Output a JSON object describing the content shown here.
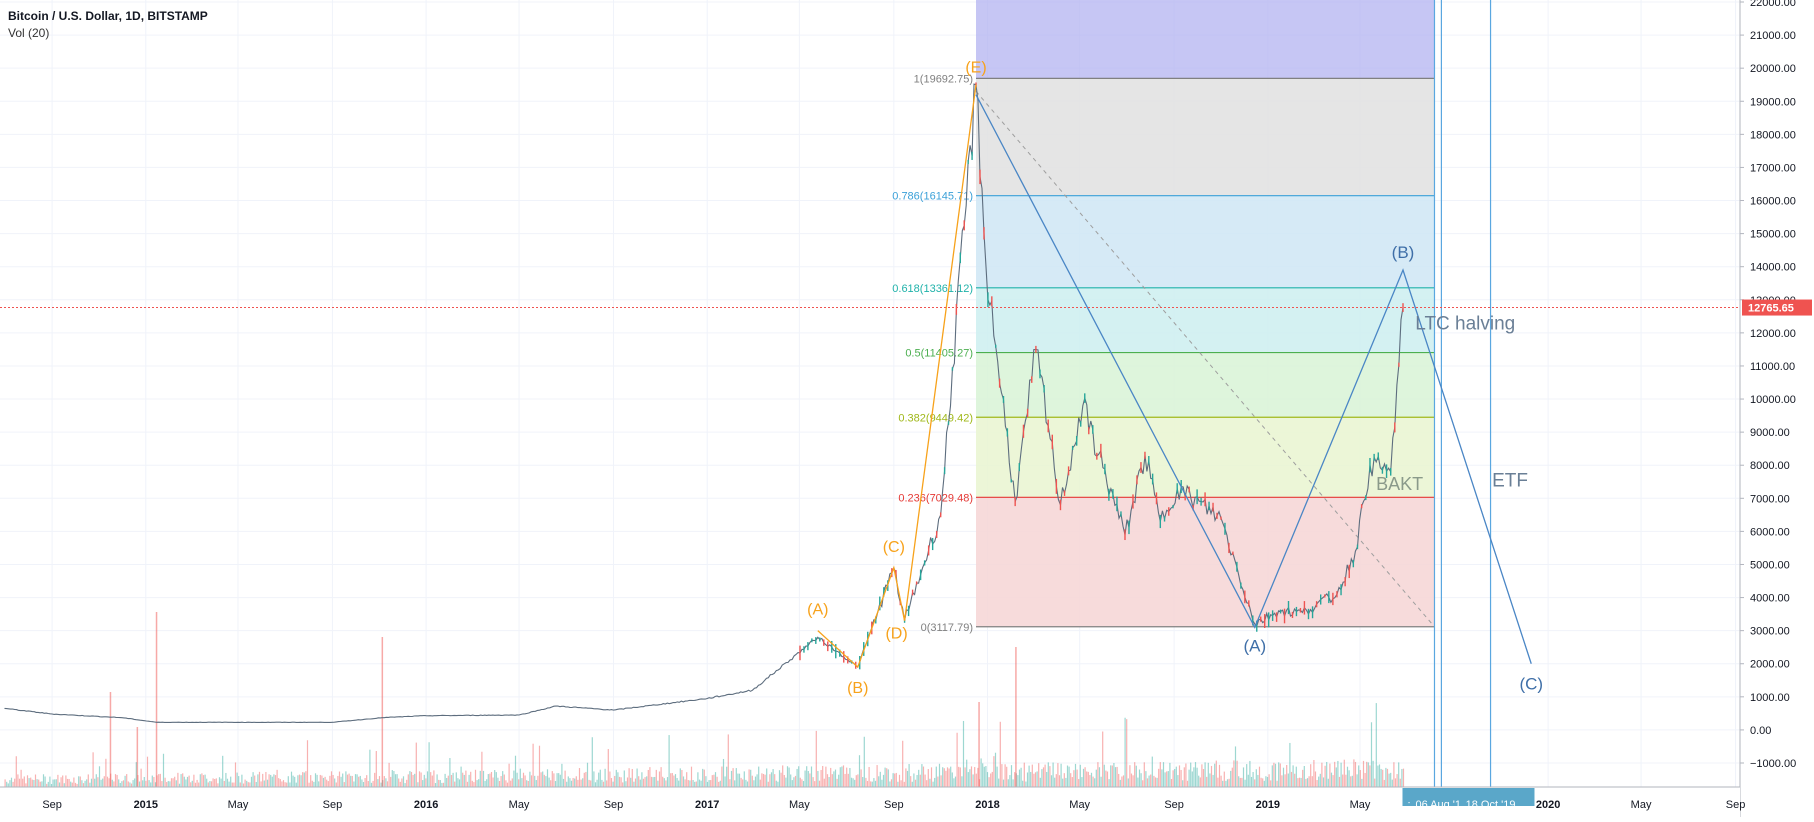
{
  "header": {
    "title": "Bitcoin / U.S. Dollar, 1D, BITSTAMP",
    "indicator": "Vol (20)"
  },
  "colors": {
    "price_line": "#ef5350",
    "price_up": "#26a69a",
    "price_down": "#ef5350",
    "projection": "#4a86c5",
    "wave_orange": "#f7a21b",
    "fib_1": "#808080",
    "fib_0786": "#3aa0d8",
    "fib_0618": "#20b2aa",
    "fib_05": "#4caf50",
    "fib_0382": "#a0b81a",
    "fib_0236": "#e53935",
    "fib_0": "#808080",
    "fib_top_fill": "#b3b3f0",
    "fib_zone_1": "#e0e0e0",
    "fib_zone_2": "#cfe6f5",
    "fib_zone_3": "#cdeef0",
    "fib_zone_4": "#d8f3d6",
    "fib_zone_5": "#e9f4d0",
    "fib_zone_6": "#f6d5d5",
    "vline": "#5aa7e0",
    "time_tag_bg": "#5aa7c9"
  },
  "price_axis": {
    "labels": [
      "22000.00",
      "21000.00",
      "20000.00",
      "19000.00",
      "18000.00",
      "17000.00",
      "16000.00",
      "15000.00",
      "14000.00",
      "13000.00",
      "12000.00",
      "11000.00",
      "10000.00",
      "9000.00",
      "8000.00",
      "7000.00",
      "6000.00",
      "5000.00",
      "4000.00",
      "3000.00",
      "2000.00",
      "1000.00",
      "0.00",
      "−1000.00"
    ],
    "last_price": "12765.65"
  },
  "time_axis": {
    "labels": [
      "Sep",
      "2015",
      "May",
      "Sep",
      "2016",
      "May",
      "Sep",
      "2017",
      "May",
      "Sep",
      "2018",
      "May",
      "Sep",
      "2019",
      "May",
      "2020",
      "May",
      "Sep"
    ],
    "tag_text": "06 Aug '1",
    "tag_text_2": "18 Oct '19",
    "tag_prefix": ":"
  },
  "fib_levels": [
    {
      "label": "1(19692.75)",
      "value": 19692.75
    },
    {
      "label": "0.786(16145.71)",
      "value": 16145.71
    },
    {
      "label": "0.618(13361.12)",
      "value": 13361.12
    },
    {
      "label": "0.5(11405.27)",
      "value": 11405.27
    },
    {
      "label": "0.382(9449.42)",
      "value": 9449.42
    },
    {
      "label": "0.236(7029.48)",
      "value": 7029.48
    },
    {
      "label": "0(3117.79)",
      "value": 3117.79
    }
  ],
  "wave_labels_orange": [
    "(A)",
    "(B)",
    "(C)",
    "(D)",
    "(E)"
  ],
  "wave_labels_blue": [
    "(A)",
    "(B)",
    "(C)"
  ],
  "annotations": {
    "ltc": "LTC halving",
    "bakt": "BAKT",
    "etf": "ETF"
  },
  "chart_data": {
    "type": "line",
    "title": "Bitcoin / U.S. Dollar, 1D, BITSTAMP",
    "series": [
      {
        "name": "Bitcoin / U.S. Dollar",
        "x": [
          "2014-07-01",
          "2014-09-01",
          "2014-12-01",
          "2015-01-15",
          "2015-05-01",
          "2015-09-01",
          "2015-11-05",
          "2016-01-01",
          "2016-05-01",
          "2016-06-18",
          "2016-09-01",
          "2017-01-01",
          "2017-03-01",
          "2017-05-25",
          "2017-07-16",
          "2017-09-01",
          "2017-09-15",
          "2017-11-01",
          "2017-12-17",
          "2017-12-30",
          "2018-02-06",
          "2018-03-05",
          "2018-04-06",
          "2018-05-05",
          "2018-06-29",
          "2018-07-25",
          "2018-08-14",
          "2018-09-05",
          "2018-11-01",
          "2018-12-15",
          "2019-01-15",
          "2019-02-15",
          "2019-04-01",
          "2019-04-25",
          "2019-05-14",
          "2019-06-10",
          "2019-06-26"
        ],
        "values": [
          650,
          480,
          370,
          230,
          230,
          230,
          370,
          430,
          450,
          720,
          600,
          950,
          1200,
          2800,
          1900,
          4900,
          3300,
          6500,
          19500,
          14000,
          6900,
          11500,
          6800,
          9800,
          5900,
          8300,
          6300,
          7300,
          6400,
          3200,
          3600,
          3550,
          4100,
          5400,
          8000,
          7800,
          12765
        ]
      },
      {
        "name": "Vol (20)",
        "type": "bar",
        "note": "daily volume bars along the bottom of the chart"
      }
    ],
    "projection_path": {
      "x": [
        "2017-12-17",
        "2018-12-15",
        "2019-06-26",
        "2019-12-10"
      ],
      "values": [
        19200,
        3100,
        13900,
        2000
      ],
      "labels": [
        "",
        "(A)",
        "(B)",
        "(C)"
      ]
    },
    "orange_wave": {
      "x": [
        "2017-05-25",
        "2017-07-16",
        "2017-09-01",
        "2017-09-15",
        "2017-12-17"
      ],
      "values": [
        3000,
        1900,
        4900,
        3300,
        19500
      ],
      "labels": [
        "(A)",
        "(B)",
        "(C)",
        "(D)",
        "(E)"
      ]
    },
    "fib_retracement": {
      "x_range": [
        "2017-12-17",
        "2019-08-06"
      ],
      "levels": [
        1,
        0.786,
        0.618,
        0.5,
        0.382,
        0.236,
        0
      ],
      "prices": [
        19692.75,
        16145.71,
        13361.12,
        11405.27,
        9449.42,
        7029.48,
        3117.79
      ]
    },
    "vertical_lines": [
      "2019-08-06",
      "2019-08-15",
      "2019-10-18"
    ],
    "ylim": [
      -1800,
      22000
    ],
    "xlim": [
      "2014-07-01",
      "2020-10-01"
    ],
    "xlabel": "",
    "ylabel": "",
    "grid": true
  }
}
